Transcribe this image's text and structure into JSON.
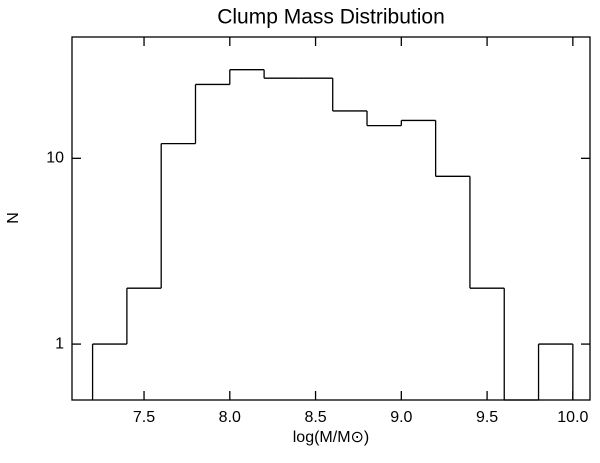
{
  "chart_data": {
    "type": "histogram",
    "title": "Clump Mass Distribution",
    "xlabel": "log(M/M⊙)",
    "ylabel": "N",
    "bins": [
      7.2,
      7.4,
      7.6,
      7.8,
      8.0,
      8.2,
      8.4,
      8.6,
      8.8,
      9.0,
      9.2,
      9.4,
      9.6,
      9.8,
      10.0
    ],
    "values": [
      1,
      2,
      12,
      25,
      30,
      27,
      27,
      18,
      15,
      16,
      8,
      2,
      0,
      1
    ],
    "color": "#000000",
    "ylog": true,
    "xlim": [
      7.08,
      10.1
    ],
    "ylim": [
      0.5,
      45
    ],
    "xticks": [
      7.5,
      {
        "value": 8.0,
        "label": "8.0"
      },
      8.5,
      {
        "value": 9.0,
        "label": "9.0"
      },
      9.5,
      {
        "value": 10.0,
        "label": "10.0"
      }
    ],
    "yticks": [
      1,
      10
    ]
  }
}
